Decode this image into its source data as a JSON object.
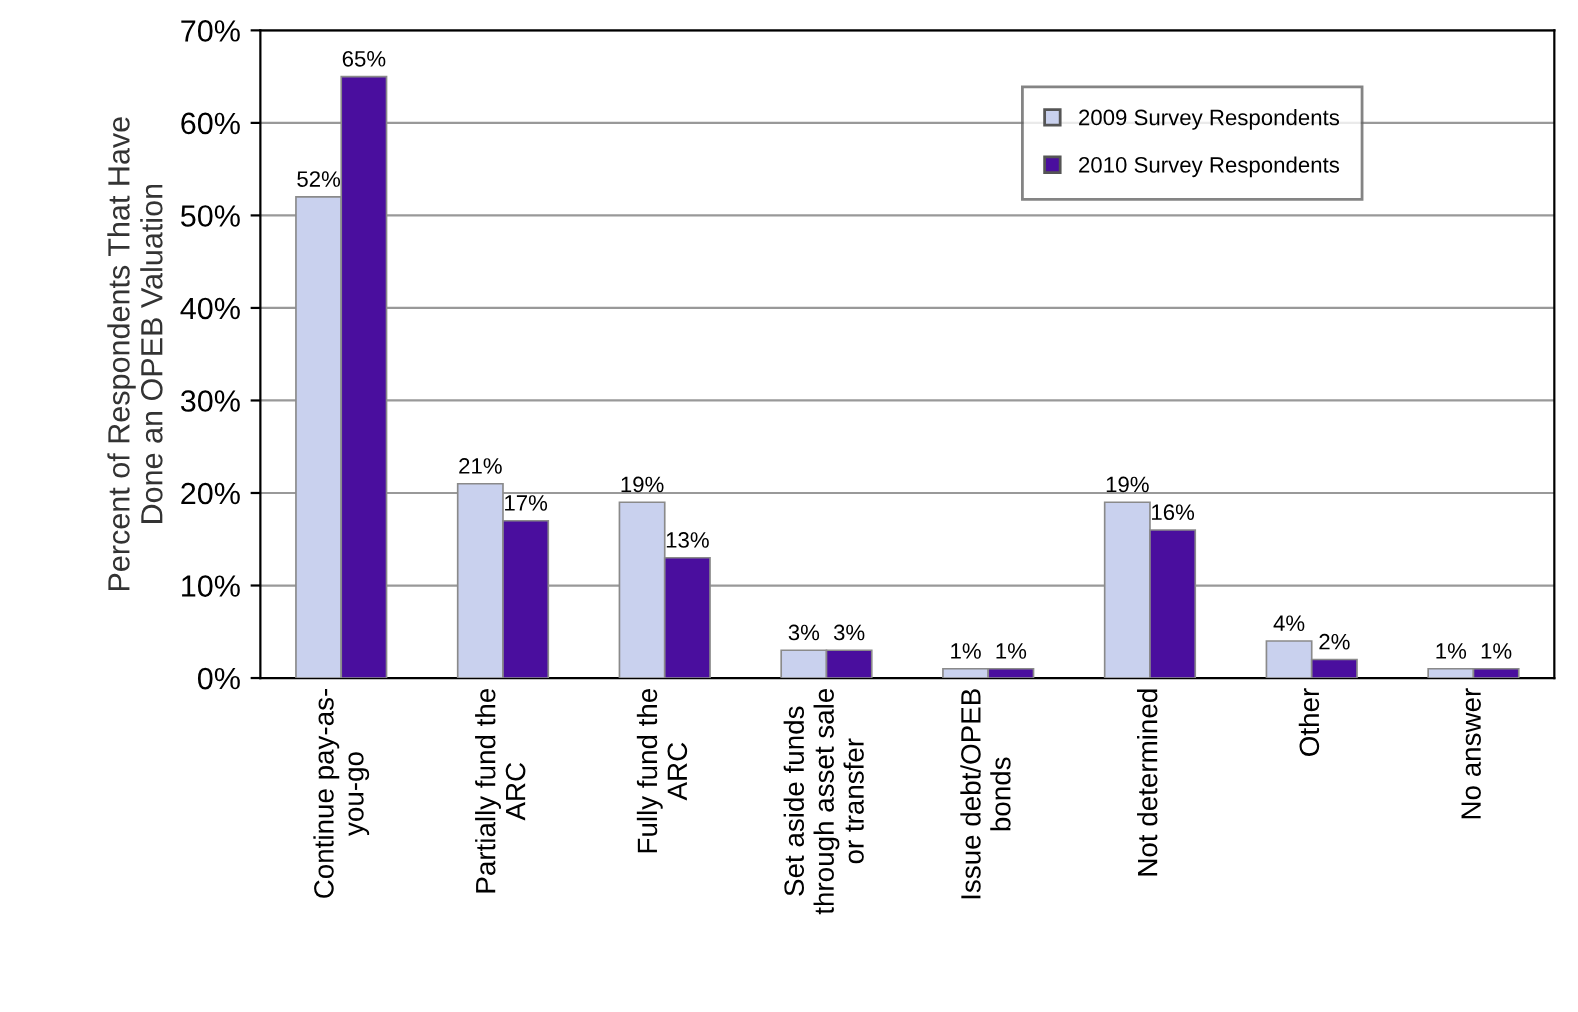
{
  "chart_data": {
    "type": "bar",
    "ylabel": "Percent of Respondents That Have\nDone an OPEB Valuation",
    "categories": [
      "Continue pay-as-\nyou-go",
      "Partially fund the\nARC",
      "Fully fund the\nARC",
      "Set aside funds\nthrough asset sale\nor transfer",
      "Issue debt/OPEB\nbonds",
      "Not determined",
      "Other",
      "No answer"
    ],
    "series": [
      {
        "name": "2009 Survey Respondents",
        "color": "#c9d1ee",
        "values": [
          52,
          21,
          19,
          3,
          1,
          19,
          4,
          1
        ],
        "value_labels": [
          "52%",
          "21%",
          "19%",
          "3%",
          "1%",
          "19%",
          "4%",
          "1%"
        ]
      },
      {
        "name": "2010 Survey Respondents",
        "color": "#4a0e9e",
        "values": [
          65,
          17,
          13,
          3,
          1,
          16,
          2,
          1
        ],
        "value_labels": [
          "65%",
          "17%",
          "13%",
          "3%",
          "1%",
          "16%",
          "2%",
          "1%"
        ]
      }
    ],
    "ylim": [
      0,
      70
    ],
    "yticks": [
      {
        "value": 0,
        "label": "0%"
      },
      {
        "value": 10,
        "label": "10%"
      },
      {
        "value": 20,
        "label": "20%"
      },
      {
        "value": 30,
        "label": "30%"
      },
      {
        "value": 40,
        "label": "40%"
      },
      {
        "value": 50,
        "label": "50%"
      },
      {
        "value": 60,
        "label": "60%"
      },
      {
        "value": 70,
        "label": "70%"
      }
    ],
    "grid": "y",
    "legend": "top right"
  }
}
